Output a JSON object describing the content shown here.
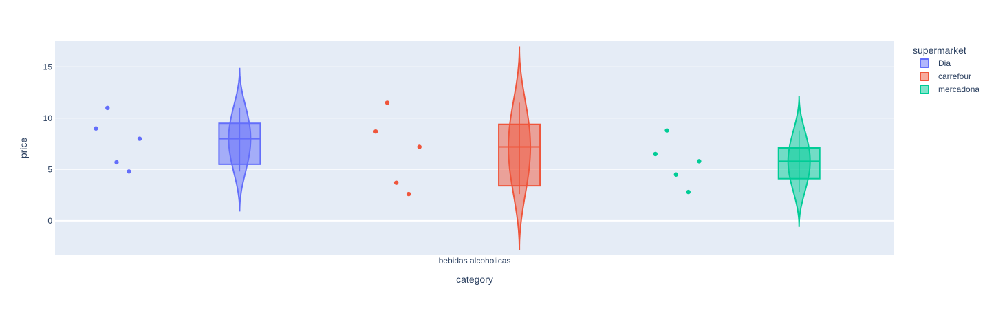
{
  "chart_data": {
    "type": "violin",
    "xlabel": "category",
    "ylabel": "price",
    "categories": [
      "bebidas alcoholicas"
    ],
    "ylim": [
      -3.3,
      17.5
    ],
    "yticks": [
      0,
      5,
      10,
      15
    ],
    "grid": true,
    "legend": {
      "title": "supermarket",
      "placement": "top-right"
    },
    "series": [
      {
        "name": "Dia",
        "color": "#636efa",
        "points": [
          9.0,
          11.0,
          5.7,
          4.8,
          8.0
        ],
        "box": {
          "q1": 5.5,
          "median": 8.0,
          "q3": 9.5,
          "whisker_low": 4.8,
          "whisker_high": 11.0
        },
        "violin_span": [
          0.9,
          14.9
        ]
      },
      {
        "name": "carrefour",
        "color": "#ef553b",
        "points": [
          8.7,
          11.5,
          3.7,
          2.6,
          7.2
        ],
        "box": {
          "q1": 3.4,
          "median": 7.2,
          "q3": 9.4,
          "whisker_low": 2.6,
          "whisker_high": 11.5
        },
        "violin_span": [
          -2.9,
          17.0
        ]
      },
      {
        "name": "mercadona",
        "color": "#00cc96",
        "points": [
          6.5,
          8.8,
          4.5,
          2.8,
          5.8
        ],
        "box": {
          "q1": 4.1,
          "median": 5.8,
          "q3": 7.1,
          "whisker_low": 2.8,
          "whisker_high": 8.8
        },
        "violin_span": [
          -0.6,
          12.2
        ]
      }
    ]
  }
}
